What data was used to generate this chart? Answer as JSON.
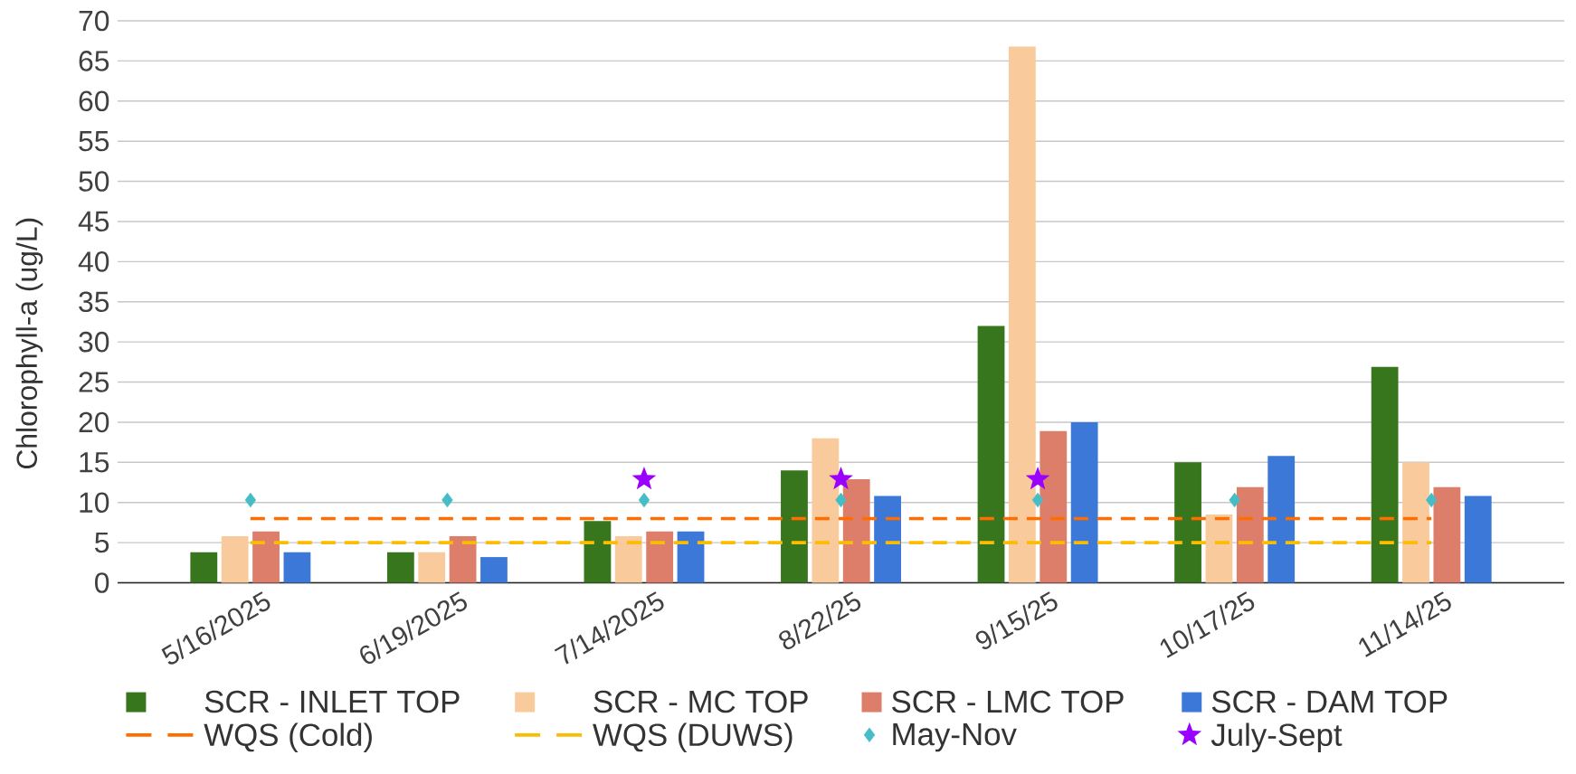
{
  "chart_data": {
    "type": "bar",
    "ylabel": "Chlorophyll-a (ug/L)",
    "categories": [
      "5/16/2025",
      "6/19/2025",
      "7/14/2025",
      "8/22/25",
      "9/15/25",
      "10/17/25",
      "11/14/25"
    ],
    "series": [
      {
        "name": "SCR - INLET TOP",
        "color": "#38761d",
        "values": [
          3.8,
          3.8,
          7.7,
          14,
          32,
          15,
          26.9
        ]
      },
      {
        "name": "SCR - MC TOP",
        "color": "#f9cb9c",
        "values": [
          5.8,
          3.8,
          5.8,
          18,
          66.8,
          8.5,
          15
        ]
      },
      {
        "name": "SCR - LMC TOP",
        "color": "#dd7e6b",
        "values": [
          6.4,
          5.8,
          6.4,
          12.9,
          18.9,
          11.9,
          11.9
        ]
      },
      {
        "name": "SCR - DAM TOP",
        "color": "#3c78d8",
        "values": [
          3.8,
          3.2,
          6.4,
          10.8,
          20,
          15.8,
          10.8
        ]
      },
      {
        "name": "WQS (Cold)",
        "type": "line",
        "color": "#ff6d01",
        "line_style": "dashed",
        "marker": "none",
        "values": [
          8,
          8,
          8,
          8,
          8,
          8,
          8
        ]
      },
      {
        "name": "WQS (DUWS)",
        "type": "line",
        "color": "#fbbc04",
        "line_style": "dashed",
        "marker": "none",
        "values": [
          5,
          5,
          5,
          5,
          5,
          5,
          5
        ]
      },
      {
        "name": "May-Nov",
        "type": "scatter",
        "color": "#46bdc6",
        "marker": "diamond",
        "values": [
          10.3,
          10.3,
          10.3,
          10.3,
          10.3,
          10.3,
          10.3
        ]
      },
      {
        "name": "July-Sept",
        "type": "scatter",
        "color": "#9900ff",
        "marker": "star",
        "values": [
          null,
          null,
          12.9,
          12.9,
          12.9,
          null,
          null
        ]
      }
    ],
    "ylim": [
      0,
      70
    ],
    "yticks": [
      0,
      5,
      10,
      15,
      20,
      25,
      30,
      35,
      40,
      45,
      50,
      55,
      60,
      65,
      70
    ],
    "grid": "y",
    "legend": "bottom"
  }
}
